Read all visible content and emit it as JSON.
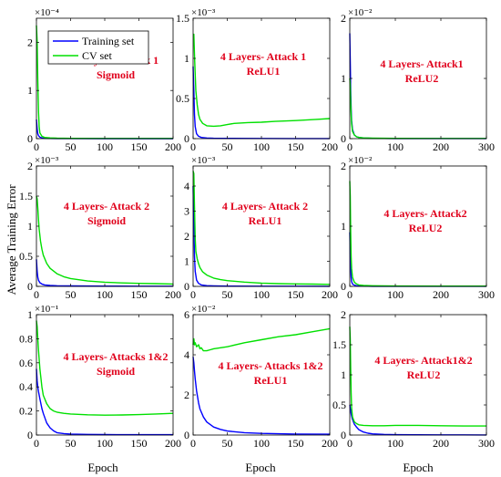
{
  "colors": {
    "training": "#0000ff",
    "cv": "#00e000",
    "annotation": "#e0001b"
  },
  "legend": {
    "training": "Training set",
    "cv": "CV set"
  },
  "ylabel": "Average Training Error",
  "xlabel": "Epoch",
  "chart_data": [
    {
      "type": "line",
      "annotation": [
        "4 Layers- Attack 1",
        "Sigmoid"
      ],
      "exponent": "×10⁻⁴",
      "xlim": [
        0,
        200
      ],
      "ylim": [
        0,
        2.5
      ],
      "xticks": [
        "0",
        "50",
        "100",
        "150",
        "200"
      ],
      "yticks": [
        "0",
        "1",
        "2"
      ],
      "series": [
        {
          "name": "Training set",
          "x": [
            0,
            1,
            2,
            3,
            5,
            8,
            12,
            20,
            30,
            50,
            100,
            150,
            200
          ],
          "y": [
            0.4,
            0.2,
            0.1,
            0.06,
            0.03,
            0.015,
            0.008,
            0.004,
            0.002,
            0.001,
            0.0005,
            0.0003,
            0.0002
          ]
        },
        {
          "name": "CV set",
          "x": [
            0,
            1,
            2,
            3,
            4,
            5,
            8,
            12,
            20,
            30,
            50,
            100,
            150,
            200
          ],
          "y": [
            2.35,
            2.0,
            1.2,
            0.55,
            0.25,
            0.12,
            0.05,
            0.025,
            0.015,
            0.01,
            0.006,
            0.004,
            0.003,
            0.003
          ]
        }
      ]
    },
    {
      "type": "line",
      "annotation": [
        "4 Layers- Attack 1",
        "ReLU1"
      ],
      "exponent": "×10⁻³",
      "xlim": [
        0,
        200
      ],
      "ylim": [
        0,
        1.5
      ],
      "xticks": [
        "0",
        "50",
        "100",
        "150",
        "200"
      ],
      "yticks": [
        "0",
        "0.5",
        "1",
        "1.5"
      ],
      "series": [
        {
          "name": "Training set",
          "x": [
            0,
            1,
            2,
            3,
            5,
            8,
            12,
            20,
            30,
            50,
            100,
            150,
            200
          ],
          "y": [
            0.9,
            0.6,
            0.3,
            0.15,
            0.06,
            0.03,
            0.015,
            0.008,
            0.005,
            0.003,
            0.002,
            0.0015,
            0.001
          ]
        },
        {
          "name": "CV set",
          "x": [
            0,
            1,
            2,
            3,
            4,
            6,
            8,
            10,
            14,
            20,
            30,
            40,
            50,
            60,
            80,
            100,
            120,
            150,
            180,
            200
          ],
          "y": [
            1.3,
            1.3,
            1.05,
            0.8,
            0.6,
            0.42,
            0.3,
            0.24,
            0.19,
            0.16,
            0.155,
            0.16,
            0.175,
            0.19,
            0.2,
            0.205,
            0.215,
            0.225,
            0.24,
            0.25
          ]
        }
      ]
    },
    {
      "type": "line",
      "annotation": [
        "4 Layers- Attack1",
        "ReLU2"
      ],
      "exponent": "×10⁻²",
      "xlim": [
        0,
        300
      ],
      "ylim": [
        0,
        2
      ],
      "xticks": [
        "0",
        "100",
        "200",
        "300"
      ],
      "yticks": [
        "0",
        "1",
        "2"
      ],
      "series": [
        {
          "name": "Training set",
          "x": [
            0,
            1,
            2,
            3,
            4,
            6,
            10,
            15,
            20,
            30,
            50,
            100,
            200,
            300
          ],
          "y": [
            1.75,
            1.3,
            0.8,
            0.5,
            0.3,
            0.15,
            0.06,
            0.03,
            0.02,
            0.01,
            0.005,
            0.002,
            0.001,
            0.001
          ]
        },
        {
          "name": "CV set",
          "x": [
            0,
            1,
            2,
            3,
            4,
            6,
            10,
            15,
            20,
            30,
            50,
            100,
            200,
            300
          ],
          "y": [
            1.0,
            0.9,
            0.6,
            0.4,
            0.25,
            0.12,
            0.06,
            0.03,
            0.02,
            0.012,
            0.007,
            0.004,
            0.003,
            0.003
          ]
        }
      ]
    },
    {
      "type": "line",
      "annotation": [
        "4 Layers- Attack 2",
        "Sigmoid"
      ],
      "exponent": "×10⁻³",
      "xlim": [
        0,
        200
      ],
      "ylim": [
        0,
        2
      ],
      "xticks": [
        "0",
        "50",
        "100",
        "150",
        "200"
      ],
      "yticks": [
        "0",
        "0.5",
        "1",
        "1.5",
        "2"
      ],
      "series": [
        {
          "name": "Training set",
          "x": [
            0,
            1,
            2,
            3,
            5,
            8,
            12,
            20,
            30,
            50,
            100,
            150,
            200
          ],
          "y": [
            0.45,
            0.25,
            0.15,
            0.1,
            0.06,
            0.04,
            0.025,
            0.015,
            0.01,
            0.007,
            0.004,
            0.003,
            0.003
          ]
        },
        {
          "name": "CV set",
          "x": [
            0,
            1,
            2,
            3,
            4,
            6,
            8,
            10,
            15,
            20,
            30,
            40,
            50,
            75,
            100,
            125,
            150,
            175,
            200
          ],
          "y": [
            1.5,
            1.45,
            1.3,
            1.1,
            0.95,
            0.75,
            0.62,
            0.52,
            0.38,
            0.3,
            0.21,
            0.16,
            0.13,
            0.09,
            0.07,
            0.058,
            0.05,
            0.045,
            0.04
          ]
        }
      ]
    },
    {
      "type": "line",
      "annotation": [
        "4 Layers- Attack 2",
        "ReLU1"
      ],
      "exponent": "×10⁻³",
      "xlim": [
        0,
        200
      ],
      "ylim": [
        0,
        4.8
      ],
      "xticks": [
        "0",
        "50",
        "100",
        "150",
        "200"
      ],
      "yticks": [
        "0",
        "1",
        "2",
        "3",
        "4"
      ],
      "series": [
        {
          "name": "Training set",
          "x": [
            0,
            1,
            2,
            3,
            5,
            8,
            12,
            20,
            30,
            50,
            100,
            150,
            200
          ],
          "y": [
            4.0,
            2.5,
            1.2,
            0.6,
            0.25,
            0.12,
            0.06,
            0.03,
            0.02,
            0.012,
            0.008,
            0.006,
            0.005
          ]
        },
        {
          "name": "CV set",
          "x": [
            0,
            1,
            2,
            3,
            4,
            6,
            8,
            10,
            14,
            20,
            30,
            40,
            50,
            75,
            100,
            125,
            150,
            175,
            200
          ],
          "y": [
            4.6,
            4.5,
            3.2,
            1.9,
            1.4,
            1.1,
            0.9,
            0.75,
            0.58,
            0.45,
            0.33,
            0.27,
            0.23,
            0.17,
            0.13,
            0.11,
            0.1,
            0.09,
            0.08
          ]
        }
      ]
    },
    {
      "type": "line",
      "annotation": [
        "4 Layers- Attack2",
        "ReLU2"
      ],
      "exponent": "×10⁻²",
      "xlim": [
        0,
        300
      ],
      "ylim": [
        0,
        2
      ],
      "xticks": [
        "0",
        "100",
        "200",
        "300"
      ],
      "yticks": [
        "0",
        "1",
        "2"
      ],
      "series": [
        {
          "name": "Training set",
          "x": [
            0,
            1,
            2,
            3,
            4,
            6,
            10,
            15,
            20,
            30,
            50,
            100,
            200,
            300
          ],
          "y": [
            0.9,
            0.5,
            0.3,
            0.15,
            0.08,
            0.04,
            0.02,
            0.01,
            0.006,
            0.004,
            0.002,
            0.001,
            0.001,
            0.001
          ]
        },
        {
          "name": "CV set",
          "x": [
            0,
            1,
            2,
            3,
            4,
            6,
            10,
            15,
            20,
            30,
            50,
            100,
            200,
            300
          ],
          "y": [
            1.75,
            1.5,
            0.9,
            0.5,
            0.3,
            0.15,
            0.07,
            0.04,
            0.025,
            0.015,
            0.01,
            0.006,
            0.004,
            0.004
          ]
        }
      ]
    },
    {
      "type": "line",
      "annotation": [
        "4 Layers- Attacks 1&2",
        "Sigmoid"
      ],
      "exponent": "×10⁻¹",
      "xlim": [
        0,
        200
      ],
      "ylim": [
        0,
        1
      ],
      "xticks": [
        "0",
        "50",
        "100",
        "150",
        "200"
      ],
      "yticks": [
        "0",
        "0.2",
        "0.4",
        "0.6",
        "0.8",
        "1"
      ],
      "series": [
        {
          "name": "Training set",
          "x": [
            0,
            1,
            2,
            3,
            5,
            8,
            10,
            15,
            20,
            25,
            30,
            40,
            50,
            75,
            100,
            150,
            200
          ],
          "y": [
            0.55,
            0.45,
            0.4,
            0.36,
            0.3,
            0.22,
            0.18,
            0.1,
            0.06,
            0.035,
            0.02,
            0.012,
            0.008,
            0.005,
            0.004,
            0.003,
            0.003
          ]
        },
        {
          "name": "CV set",
          "x": [
            0,
            1,
            2,
            3,
            5,
            8,
            10,
            15,
            20,
            25,
            30,
            40,
            50,
            75,
            100,
            125,
            150,
            175,
            200
          ],
          "y": [
            0.95,
            0.9,
            0.8,
            0.7,
            0.55,
            0.4,
            0.33,
            0.26,
            0.22,
            0.2,
            0.19,
            0.18,
            0.175,
            0.168,
            0.165,
            0.167,
            0.17,
            0.175,
            0.18
          ]
        }
      ]
    },
    {
      "type": "line",
      "annotation": [
        "4 Layers- Attacks 1&2",
        "ReLU1"
      ],
      "exponent": "×10⁻²",
      "xlim": [
        0,
        200
      ],
      "ylim": [
        0,
        6
      ],
      "xticks": [
        "0",
        "50",
        "100",
        "150",
        "200"
      ],
      "yticks": [
        "0",
        "2",
        "4",
        "6"
      ],
      "series": [
        {
          "name": "Training set",
          "x": [
            0,
            1,
            2,
            3,
            5,
            8,
            10,
            15,
            20,
            30,
            40,
            50,
            75,
            100,
            150,
            200
          ],
          "y": [
            3.9,
            3.6,
            3.2,
            2.8,
            2.2,
            1.6,
            1.3,
            0.9,
            0.65,
            0.4,
            0.28,
            0.2,
            0.12,
            0.08,
            0.05,
            0.04
          ]
        },
        {
          "name": "CV set",
          "x": [
            0,
            1,
            2,
            3,
            5,
            8,
            10,
            12,
            15,
            20,
            25,
            30,
            50,
            75,
            100,
            125,
            150,
            175,
            200
          ],
          "y": [
            4.5,
            4.8,
            4.5,
            4.6,
            4.4,
            4.5,
            4.3,
            4.35,
            4.2,
            4.2,
            4.25,
            4.3,
            4.4,
            4.6,
            4.75,
            4.9,
            5.0,
            5.15,
            5.3
          ]
        }
      ]
    },
    {
      "type": "line",
      "annotation": [
        "4 Layers- Attack1&2",
        "ReLU2"
      ],
      "exponent": "",
      "xlim": [
        0,
        300
      ],
      "ylim": [
        0,
        2
      ],
      "xticks": [
        "0",
        "100",
        "200",
        "300"
      ],
      "yticks": [
        "0",
        "0.5",
        "1",
        "1.5",
        "2"
      ],
      "series": [
        {
          "name": "Training set",
          "x": [
            0,
            1,
            2,
            3,
            5,
            8,
            10,
            15,
            20,
            30,
            40,
            50,
            75,
            100,
            200,
            300
          ],
          "y": [
            0.5,
            0.45,
            0.4,
            0.35,
            0.28,
            0.22,
            0.18,
            0.13,
            0.09,
            0.05,
            0.03,
            0.02,
            0.01,
            0.006,
            0.003,
            0.002
          ]
        },
        {
          "name": "CV set",
          "x": [
            0,
            1,
            2,
            3,
            4,
            6,
            10,
            15,
            20,
            30,
            50,
            75,
            100,
            150,
            200,
            250,
            300
          ],
          "y": [
            1.8,
            1.6,
            1.1,
            0.7,
            0.45,
            0.3,
            0.22,
            0.19,
            0.17,
            0.16,
            0.155,
            0.155,
            0.16,
            0.16,
            0.155,
            0.15,
            0.15
          ]
        }
      ]
    }
  ]
}
